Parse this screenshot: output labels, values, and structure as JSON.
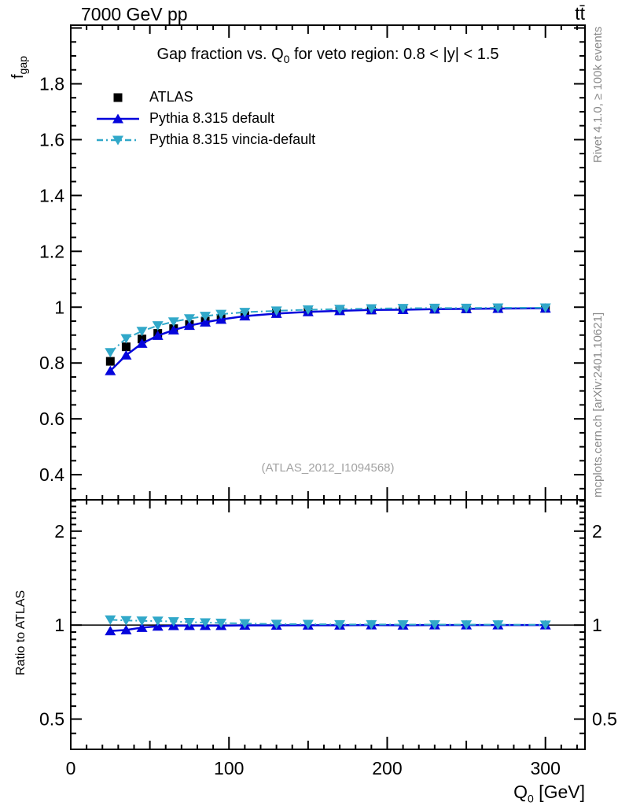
{
  "header": {
    "beam": "7000 GeV pp",
    "process": "tt̄"
  },
  "title": {
    "prefix": "Gap fraction vs. Q",
    "sub": "0",
    "suffix": " for veto region: 0.8 < |y| < 1.5"
  },
  "watermark": "(ATLAS_2012_I1094568)",
  "credits": {
    "rivet": "Rivet 4.1.0, ≥ 100k events",
    "mcplots": "mcplots.cern.ch [arXiv:2401.10621]"
  },
  "axes": {
    "x": {
      "label_main": "Q",
      "label_sub": "0",
      "label_unit": " [GeV]",
      "range": [
        0,
        325
      ],
      "minor_step": 10,
      "medium_step": 50,
      "major_step": 100,
      "ticks": [
        {
          "v": 0,
          "label": "0"
        },
        {
          "v": 100,
          "label": "100"
        },
        {
          "v": 200,
          "label": "200"
        },
        {
          "v": 300,
          "label": "300"
        }
      ]
    },
    "y_main": {
      "label_main": "f",
      "label_sub": "gap",
      "range": [
        0.31,
        2.01
      ],
      "minor_step": 0.05,
      "major_step": 0.2,
      "ticks": [
        {
          "v": 0.4,
          "label": "0.4"
        },
        {
          "v": 0.6,
          "label": "0.6"
        },
        {
          "v": 0.8,
          "label": "0.8"
        },
        {
          "v": 1,
          "label": "1"
        },
        {
          "v": 1.2,
          "label": "1.2"
        },
        {
          "v": 1.4,
          "label": "1.4"
        },
        {
          "v": 1.6,
          "label": "1.6"
        },
        {
          "v": 1.8,
          "label": "1.8"
        }
      ]
    },
    "y_ratio": {
      "label": "Ratio to ATLAS",
      "scale": "log",
      "range": [
        0.4,
        2.52
      ],
      "ticks": [
        {
          "v": 0.5,
          "label": "0.5"
        },
        {
          "v": 1,
          "label": "1"
        },
        {
          "v": 2,
          "label": "2"
        }
      ]
    }
  },
  "chart_data": {
    "type": "line",
    "title": "Gap fraction vs. Q0 for veto region: 0.8 < |y| < 1.5",
    "xlabel": "Q0 [GeV]",
    "xlim": [
      0,
      325
    ],
    "grid": false,
    "legend_position": "top-left-inside",
    "x": [
      25,
      35,
      45,
      55,
      65,
      75,
      85,
      95,
      110,
      130,
      150,
      170,
      190,
      210,
      230,
      250,
      270,
      300
    ],
    "panels": [
      {
        "name": "main",
        "ylabel": "f_gap",
        "ylim": [
          0.31,
          2.01
        ],
        "series": [
          {
            "name": "ATLAS",
            "color": "#000000",
            "marker": "square",
            "line": "none",
            "values": [
              0.806,
              0.858,
              0.886,
              0.906,
              0.923,
              0.938,
              0.95,
              0.96,
              0.97,
              0.979,
              0.984,
              0.988,
              0.99,
              0.992,
              0.993,
              0.994,
              0.995,
              0.996
            ]
          },
          {
            "name": "Pythia 8.315 default",
            "color": "#0505dc",
            "marker": "triangle-up",
            "line": "solid",
            "values": [
              0.772,
              0.828,
              0.87,
              0.898,
              0.918,
              0.934,
              0.946,
              0.956,
              0.968,
              0.977,
              0.983,
              0.987,
              0.99,
              0.991,
              0.993,
              0.994,
              0.995,
              0.996
            ]
          },
          {
            "name": "Pythia 8.315 vincia-default",
            "color": "#31a8c9",
            "marker": "triangle-down",
            "line": "dashdot",
            "values": [
              0.838,
              0.888,
              0.914,
              0.934,
              0.948,
              0.959,
              0.968,
              0.975,
              0.982,
              0.987,
              0.991,
              0.993,
              0.995,
              0.996,
              0.997,
              0.997,
              0.998,
              0.998
            ]
          }
        ]
      },
      {
        "name": "ratio",
        "ylabel": "Ratio to ATLAS",
        "yscale": "log",
        "ylim": [
          0.4,
          2.52
        ],
        "reference_line": 1,
        "series": [
          {
            "name": "Pythia 8.315 default",
            "color": "#0505dc",
            "marker": "triangle-up",
            "line": "solid",
            "values": [
              0.958,
              0.965,
              0.982,
              0.991,
              0.995,
              0.996,
              0.996,
              0.996,
              0.998,
              0.998,
              0.999,
              0.999,
              1.0,
              0.999,
              1.0,
              1.0,
              1.0,
              1.0
            ]
          },
          {
            "name": "Pythia 8.315 vincia-default",
            "color": "#31a8c9",
            "marker": "triangle-down",
            "line": "dashdot",
            "values": [
              1.04,
              1.035,
              1.032,
              1.031,
              1.027,
              1.022,
              1.019,
              1.016,
              1.012,
              1.008,
              1.007,
              1.005,
              1.005,
              1.004,
              1.004,
              1.003,
              1.003,
              1.002
            ]
          }
        ]
      }
    ]
  }
}
